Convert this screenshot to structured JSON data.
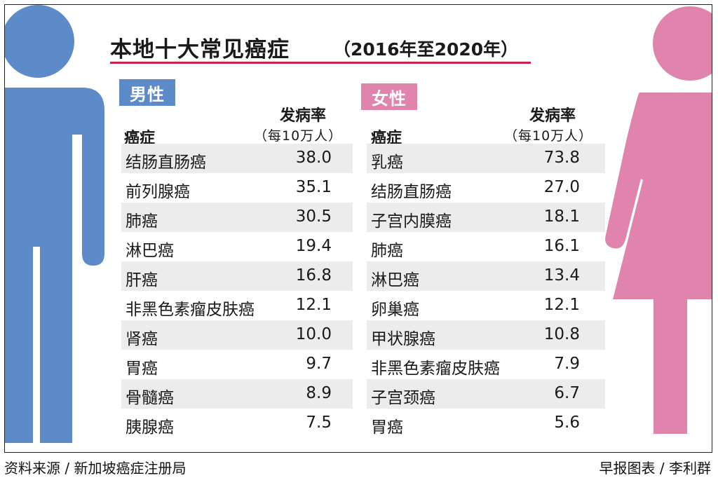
{
  "title": {
    "main": "本地十大常见癌症",
    "sub": "（2016年至2020年）"
  },
  "colors": {
    "male": "#5d8ac8",
    "female": "#e083ad",
    "title_rule": "#c8244f"
  },
  "columns": {
    "cancer": "癌症",
    "rate": "发病率",
    "rate_unit": "（每10万人）"
  },
  "chart_data": [
    {
      "type": "table",
      "group": "男性",
      "categories": [
        "结肠直肠癌",
        "前列腺癌",
        "肺癌",
        "淋巴癌",
        "肝癌",
        "非黑色素瘤皮肤癌",
        "肾癌",
        "胃癌",
        "骨髓癌",
        "胰腺癌"
      ],
      "values": [
        38.0,
        35.1,
        30.5,
        19.4,
        16.8,
        12.1,
        10.0,
        9.7,
        8.9,
        7.5
      ],
      "display_values": [
        "38.0",
        "35.1",
        "30.5",
        "19.4",
        "16.8",
        "12.1",
        "10.0",
        "9.7",
        "8.9",
        "7.5"
      ]
    },
    {
      "type": "table",
      "group": "女性",
      "categories": [
        "乳癌",
        "结肠直肠癌",
        "子宫内膜癌",
        "肺癌",
        "淋巴癌",
        "卵巢癌",
        "甲状腺癌",
        "非黑色素瘤皮肤癌",
        "子宫颈癌",
        "胃癌"
      ],
      "values": [
        73.8,
        27.0,
        18.1,
        16.1,
        13.4,
        12.1,
        10.8,
        7.9,
        6.7,
        5.6
      ],
      "display_values": [
        "73.8",
        "27.0",
        "18.1",
        "16.1",
        "13.4",
        "12.1",
        "10.8",
        "7.9",
        "6.7",
        "5.6"
      ]
    }
  ],
  "footer": {
    "source": "资料来源 / 新加坡癌症注册局",
    "credit": "早报图表 / 李利群"
  }
}
